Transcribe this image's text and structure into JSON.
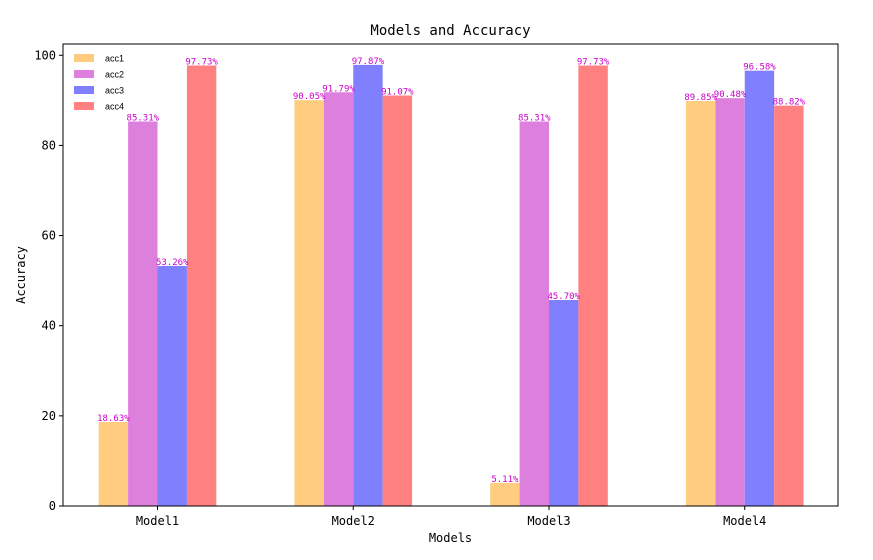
{
  "chart_data": {
    "type": "bar",
    "title": "Models and Accuracy",
    "xlabel": "Models",
    "ylabel": "Accuracy",
    "categories": [
      "Model1",
      "Model2",
      "Model3",
      "Model4"
    ],
    "ylim": [
      0,
      102.5
    ],
    "yticks": [
      "0",
      "20",
      "40",
      "60",
      "80",
      "100"
    ],
    "legend_position": "top-left",
    "grid": false,
    "series": [
      {
        "name": "acc1",
        "color": "#ffcc80",
        "values": [
          18.63,
          90.05,
          5.11,
          89.85
        ],
        "labels": [
          "18.63%",
          "90.05%",
          "5.11%",
          "89.85%"
        ]
      },
      {
        "name": "acc2",
        "color": "#dd80dd",
        "values": [
          85.31,
          91.79,
          85.31,
          90.48
        ],
        "labels": [
          "85.31%",
          "91.79%",
          "85.31%",
          "90.48%"
        ]
      },
      {
        "name": "acc3",
        "color": "#8080ff",
        "values": [
          53.26,
          97.87,
          45.7,
          96.58
        ],
        "labels": [
          "53.26%",
          "97.87%",
          "45.70%",
          "96.58%"
        ]
      },
      {
        "name": "acc4",
        "color": "#ff8080",
        "values": [
          97.73,
          91.07,
          97.73,
          88.82
        ],
        "labels": [
          "97.73%",
          "91.07%",
          "97.73%",
          "88.82%"
        ]
      }
    ],
    "label_color": "#cc00cc"
  }
}
